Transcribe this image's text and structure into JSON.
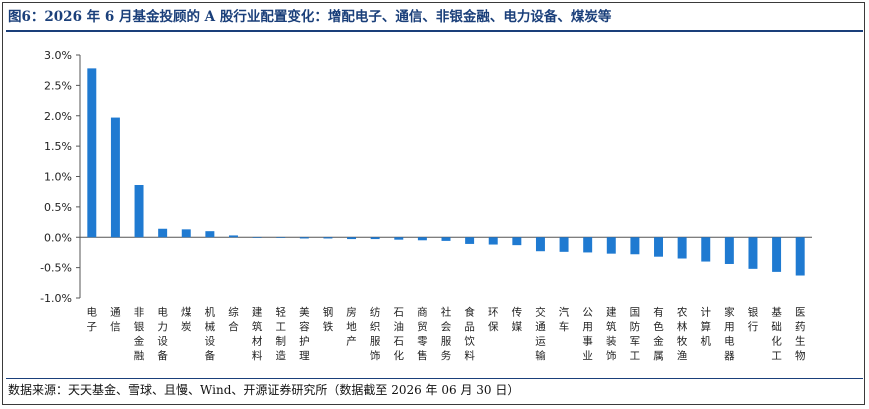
{
  "header": {
    "title": "图6：2026 年 6 月基金投顾的 A 股行业配置变化：增配电子、通信、非银金融、电力设备、煤炭等"
  },
  "footer": {
    "source": "数据来源：天天基金、雪球、且慢、Wind、开源证券研究所（数据截至 2026 年 06 月 30 日）"
  },
  "chart_data": {
    "type": "bar",
    "title": "",
    "xlabel": "",
    "ylabel": "",
    "ylim": [
      -0.01,
      0.03
    ],
    "yticks": [
      -0.01,
      -0.005,
      0.0,
      0.005,
      0.01,
      0.015,
      0.02,
      0.025,
      0.03
    ],
    "ytick_labels": [
      "-1.0%",
      "-0.5%",
      "0.0%",
      "0.5%",
      "1.0%",
      "1.5%",
      "2.0%",
      "2.5%",
      "3.0%"
    ],
    "grid": false,
    "bar_color": "#1f7ad1",
    "categories": [
      "电子",
      "通信",
      "非银金融",
      "电力设备",
      "煤炭",
      "机械设备",
      "综合",
      "建筑材料",
      "轻工制造",
      "美容护理",
      "钢铁",
      "房地产",
      "纺织服饰",
      "石油石化",
      "商贸零售",
      "社会服务",
      "食品饮料",
      "环保",
      "传媒",
      "交通运输",
      "汽车",
      "公用事业",
      "建筑装饰",
      "国防军工",
      "有色金属",
      "农林牧渔",
      "计算机",
      "家用电器",
      "银行",
      "基础化工",
      "医药生物"
    ],
    "values": [
      0.0278,
      0.0197,
      0.0086,
      0.0014,
      0.0013,
      0.001,
      0.0003,
      0.0,
      -0.0001,
      -0.0002,
      -0.0002,
      -0.0003,
      -0.0003,
      -0.0004,
      -0.0005,
      -0.0006,
      -0.0011,
      -0.0012,
      -0.0013,
      -0.0023,
      -0.0024,
      -0.0025,
      -0.0027,
      -0.0028,
      -0.0032,
      -0.0035,
      -0.004,
      -0.0044,
      -0.0052,
      -0.0057,
      -0.0063
    ]
  }
}
